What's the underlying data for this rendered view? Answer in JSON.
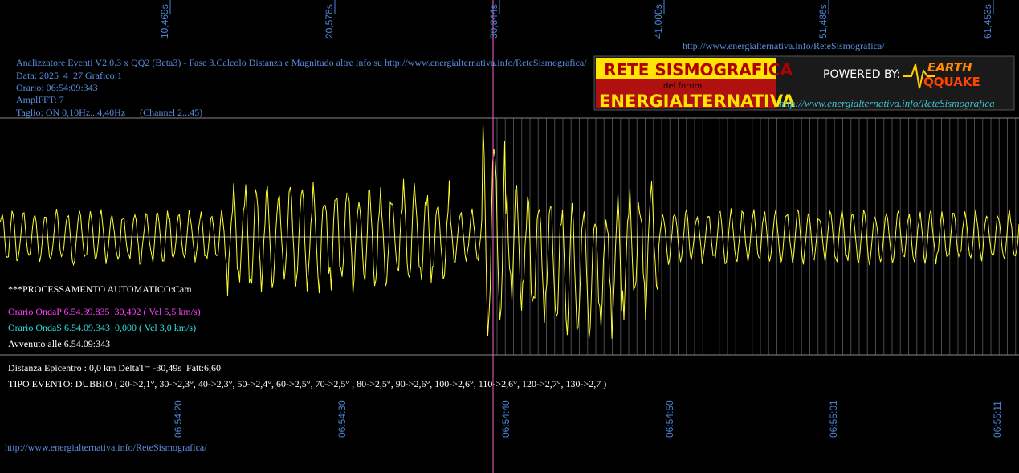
{
  "header": {
    "lines": [
      "Analizzatore Eventi V2.0.3 x QQ2 (Beta3) - Fase 3.Calcolo Distanza e Magnitudo altre info su http://www.energialternativa.info/ReteSismografica/",
      "Data: 2025_4_27 Grafico:1",
      "Orario: 06:54:09:343",
      "AmplFFT: 7",
      "Taglio: ON 0,10Hz...4,40Hz      (Channel 2...45)"
    ],
    "top_url": "http://www.energialternativa.info/ReteSismografica/"
  },
  "logo": {
    "title": "RETE SISMOGRAFICA",
    "subtitle": "del forum",
    "name": "ENERGIALTERNATIVA",
    "powered": "POWERED BY:",
    "earth": "EARTH",
    "quake": "QQUAKE",
    "url": "http://www.energialternativa.info/ReteSismografica"
  },
  "top_ticks": [
    "10,469s",
    "20,578s",
    "30,844s",
    "41,000s",
    "51,486s",
    "61,453s"
  ],
  "bottom_ticks": [
    "06:54:20",
    "06:54:30",
    "06:54:40",
    "06:54:50",
    "06:55:01",
    "06:55:11"
  ],
  "report": {
    "processing": "***PROCESSAMENTO AUTOMATICO:Cam",
    "onda_p": "Orario OndaP 6.54.39.835  30,492 ( Vel 5,5 km/s)",
    "onda_s": "Orario OndaS 6.54.09.343  0,000 ( Vel 3,0 km/s)",
    "avvenuto": "Avvenuto alle 6.54.09:343",
    "distanza": "Distanza Epicentro : 0,0 km DeltaT= -30,49s  Fatt:6,60",
    "tipo": "TIPO EVENTO: DUBBIO ( 20->2,1°, 30->2,3°, 40->2,3°, 50->2,4°, 60->2,5°, 70->2,5° , 80->2,5°, 90->2,6°, 100->2,6°, 110->2,6°, 120->2,7°, 130->2,7 )"
  },
  "footer_url": "http://www.energialternativa.info/ReteSismografica/"
}
